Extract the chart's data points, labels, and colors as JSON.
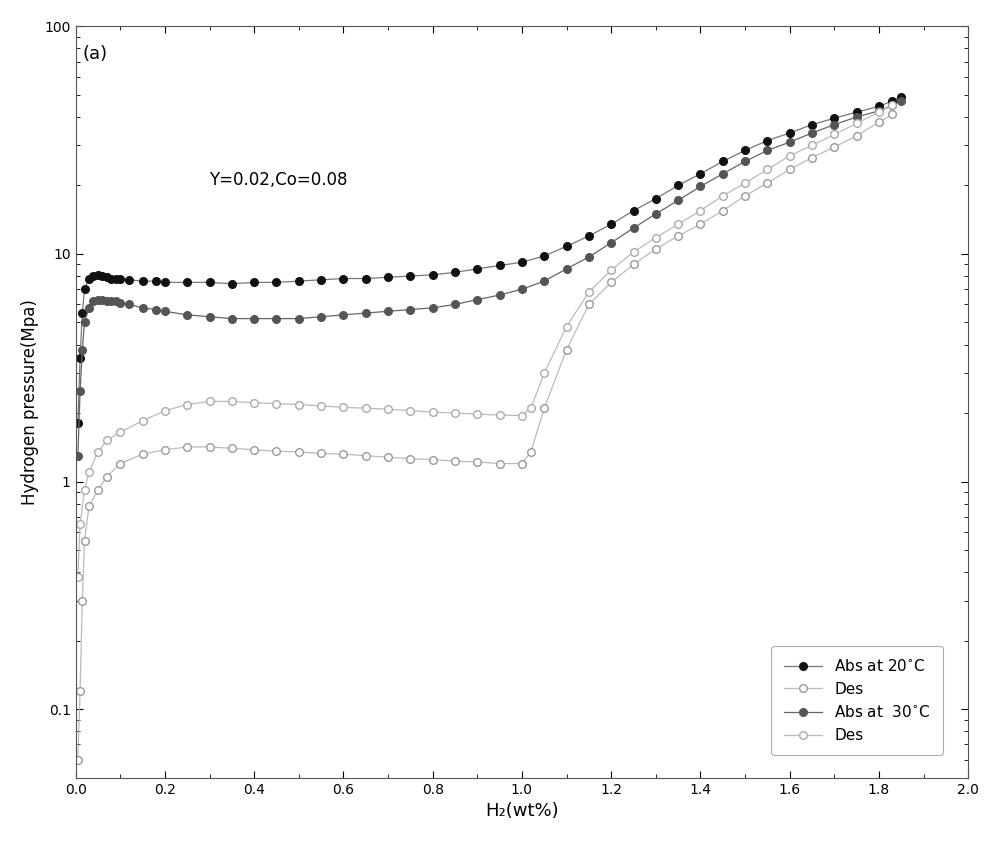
{
  "title_label": "(a)",
  "annotation": "Y=0.02,Co=0.08",
  "xlabel": "H₂(wt%)",
  "ylabel": "Hydrogen pressure(Mpa)",
  "xlim": [
    0,
    2.0
  ],
  "ylim_log": [
    0.05,
    100
  ],
  "background_color": "#ffffff",
  "abs20_x": [
    0.005,
    0.01,
    0.015,
    0.02,
    0.03,
    0.04,
    0.05,
    0.06,
    0.07,
    0.08,
    0.09,
    0.1,
    0.12,
    0.15,
    0.18,
    0.2,
    0.25,
    0.3,
    0.35,
    0.4,
    0.45,
    0.5,
    0.55,
    0.6,
    0.65,
    0.7,
    0.75,
    0.8,
    0.85,
    0.9,
    0.95,
    1.0,
    1.05,
    1.1,
    1.15,
    1.2,
    1.25,
    1.3,
    1.35,
    1.4,
    1.45,
    1.5,
    1.55,
    1.6,
    1.65,
    1.7,
    1.75,
    1.8,
    1.83,
    1.85
  ],
  "abs20_y": [
    1.8,
    3.5,
    5.5,
    7.0,
    7.8,
    8.0,
    8.1,
    8.0,
    7.9,
    7.8,
    7.8,
    7.8,
    7.7,
    7.6,
    7.6,
    7.5,
    7.5,
    7.5,
    7.4,
    7.5,
    7.5,
    7.6,
    7.7,
    7.8,
    7.8,
    7.9,
    8.0,
    8.1,
    8.3,
    8.6,
    8.9,
    9.2,
    9.8,
    10.8,
    12.0,
    13.5,
    15.5,
    17.5,
    20.0,
    22.5,
    25.5,
    28.5,
    31.5,
    34.0,
    37.0,
    39.5,
    42.0,
    44.5,
    47.0,
    49.0
  ],
  "des20_x": [
    0.005,
    0.01,
    0.015,
    0.02,
    0.03,
    0.05,
    0.07,
    0.1,
    0.15,
    0.2,
    0.25,
    0.3,
    0.35,
    0.4,
    0.45,
    0.5,
    0.55,
    0.6,
    0.65,
    0.7,
    0.75,
    0.8,
    0.85,
    0.9,
    0.95,
    1.0,
    1.02,
    1.05,
    1.1,
    1.15,
    1.2,
    1.25,
    1.3,
    1.35,
    1.4,
    1.45,
    1.5,
    1.55,
    1.6,
    1.65,
    1.7,
    1.75,
    1.8,
    1.83
  ],
  "des20_y": [
    0.06,
    0.12,
    0.3,
    0.55,
    0.78,
    0.92,
    1.05,
    1.2,
    1.32,
    1.38,
    1.42,
    1.42,
    1.4,
    1.38,
    1.36,
    1.35,
    1.33,
    1.32,
    1.3,
    1.28,
    1.26,
    1.25,
    1.23,
    1.22,
    1.2,
    1.2,
    1.35,
    2.1,
    3.8,
    6.0,
    7.5,
    9.0,
    10.5,
    12.0,
    13.5,
    15.5,
    18.0,
    20.5,
    23.5,
    26.5,
    29.5,
    33.0,
    38.0,
    41.0
  ],
  "abs30_x": [
    0.005,
    0.01,
    0.015,
    0.02,
    0.03,
    0.04,
    0.05,
    0.06,
    0.07,
    0.08,
    0.09,
    0.1,
    0.12,
    0.15,
    0.18,
    0.2,
    0.25,
    0.3,
    0.35,
    0.4,
    0.45,
    0.5,
    0.55,
    0.6,
    0.65,
    0.7,
    0.75,
    0.8,
    0.85,
    0.9,
    0.95,
    1.0,
    1.05,
    1.1,
    1.15,
    1.2,
    1.25,
    1.3,
    1.35,
    1.4,
    1.45,
    1.5,
    1.55,
    1.6,
    1.65,
    1.7,
    1.75,
    1.8,
    1.83,
    1.85
  ],
  "abs30_y": [
    1.3,
    2.5,
    3.8,
    5.0,
    5.8,
    6.2,
    6.3,
    6.3,
    6.2,
    6.2,
    6.2,
    6.1,
    6.0,
    5.8,
    5.7,
    5.6,
    5.4,
    5.3,
    5.2,
    5.2,
    5.2,
    5.2,
    5.3,
    5.4,
    5.5,
    5.6,
    5.7,
    5.8,
    6.0,
    6.3,
    6.6,
    7.0,
    7.6,
    8.6,
    9.7,
    11.2,
    13.0,
    15.0,
    17.2,
    19.8,
    22.5,
    25.5,
    28.5,
    31.0,
    34.0,
    37.0,
    40.0,
    42.5,
    45.0,
    47.0
  ],
  "des30_x": [
    0.005,
    0.01,
    0.02,
    0.03,
    0.05,
    0.07,
    0.1,
    0.15,
    0.2,
    0.25,
    0.3,
    0.35,
    0.4,
    0.45,
    0.5,
    0.55,
    0.6,
    0.65,
    0.7,
    0.75,
    0.8,
    0.85,
    0.9,
    0.95,
    1.0,
    1.02,
    1.05,
    1.1,
    1.15,
    1.2,
    1.25,
    1.3,
    1.35,
    1.4,
    1.45,
    1.5,
    1.55,
    1.6,
    1.65,
    1.7,
    1.75,
    1.8,
    1.83
  ],
  "des30_y": [
    0.38,
    0.65,
    0.92,
    1.1,
    1.35,
    1.52,
    1.65,
    1.85,
    2.05,
    2.18,
    2.25,
    2.25,
    2.22,
    2.2,
    2.18,
    2.15,
    2.12,
    2.1,
    2.08,
    2.05,
    2.02,
    2.0,
    1.98,
    1.96,
    1.95,
    2.1,
    3.0,
    4.8,
    6.8,
    8.5,
    10.2,
    11.8,
    13.5,
    15.5,
    18.0,
    20.5,
    23.5,
    27.0,
    30.0,
    33.5,
    37.5,
    42.0,
    45.0
  ],
  "color_abs20": "#111111",
  "color_des20": "#999999",
  "color_abs30": "#555555",
  "color_des30": "#aaaaaa",
  "line_color_abs20": "#777777",
  "line_color_des20": "#bbbbbb",
  "line_color_abs30": "#666666",
  "line_color_des30": "#bbbbbb"
}
